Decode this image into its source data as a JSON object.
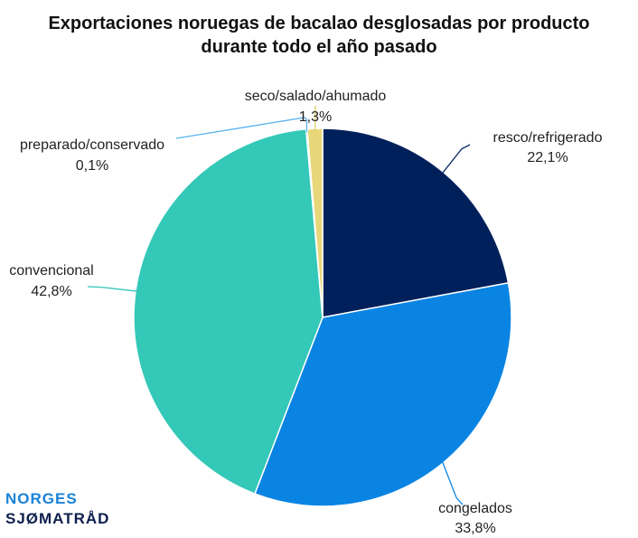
{
  "chart_data": {
    "type": "pie",
    "title_lines": [
      "Exportaciones noruegas de bacalao desglosadas por producto",
      "durante todo el año pasado"
    ],
    "slices": [
      {
        "name": "resco/refrigerado",
        "value": 22.1,
        "label": "22,1%",
        "color": "#00205b"
      },
      {
        "name": "congelados",
        "value": 33.8,
        "label": "33,8%",
        "color": "#0a84e3"
      },
      {
        "name": "convencional",
        "value": 42.8,
        "label": "42,8%",
        "color": "#33c8b8"
      },
      {
        "name": "preparado/conservado",
        "value": 0.1,
        "label": "0,1%",
        "color": "#5ab4f0"
      },
      {
        "name": "seco/salado/ahumado",
        "value": 1.3,
        "label": "1,3%",
        "color": "#e8d77a"
      }
    ],
    "start_angle_deg": 0,
    "direction": "clockwise"
  },
  "logo": {
    "line1": "NORGES",
    "line2": "SJØMATRÅD"
  }
}
